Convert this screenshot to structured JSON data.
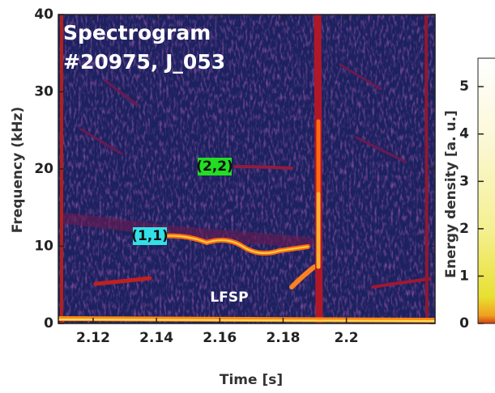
{
  "chart_data": {
    "type": "heatmap",
    "title": "Spectrogram",
    "subtitle": "#20975, J_053",
    "x_label": "Time [s]",
    "y_label": "Frequency (kHz)",
    "colorbar_label": "Energy density [a. u.]",
    "xlim": [
      2.109,
      2.228
    ],
    "xticks": [
      2.12,
      2.14,
      2.16,
      2.18,
      2.2
    ],
    "ylim": [
      0,
      40
    ],
    "yticks": [
      0,
      10,
      20,
      30,
      40
    ],
    "clim": [
      0,
      5.6
    ],
    "cticks": [
      0,
      1,
      2,
      3,
      4,
      5
    ],
    "annotations": [
      {
        "text": "(2,2)",
        "color": "#22dd22"
      },
      {
        "text": "(1,1)",
        "color": "#33e0e8"
      },
      {
        "text": "LFSP"
      }
    ]
  }
}
